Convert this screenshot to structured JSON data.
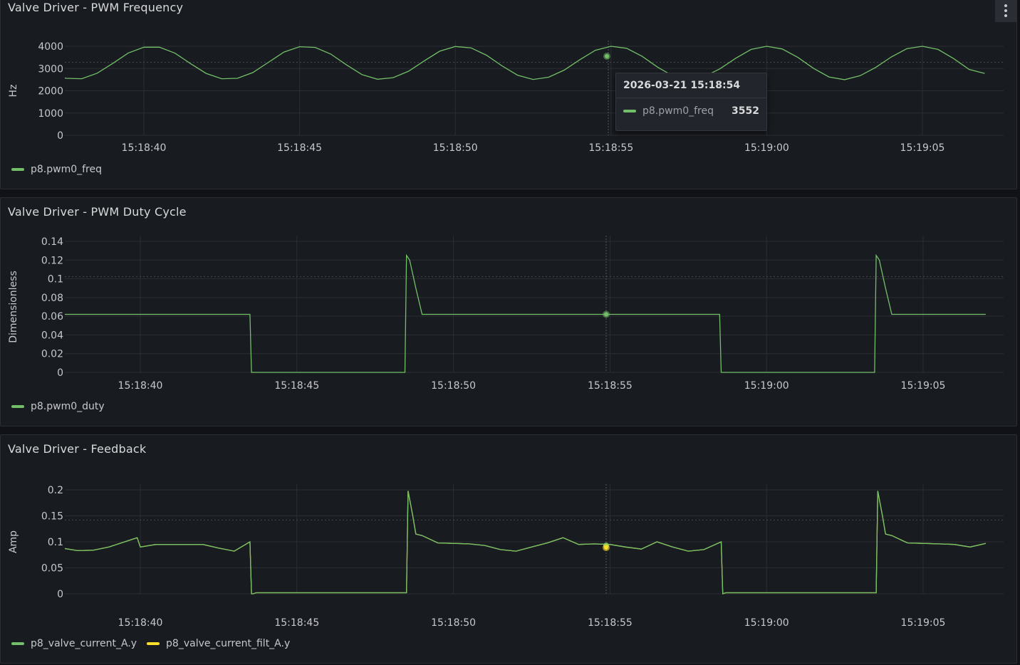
{
  "colors": {
    "green": "#73bf69",
    "yellow": "#fade2a",
    "grid": "#2b2e33",
    "text": "#c7c8cf"
  },
  "panels": [
    {
      "title": "Valve Driver - PWM Frequency",
      "menu_icon": "kebab-menu-icon",
      "legend": [
        {
          "name": "p8.pwm0_freq",
          "color": "#73bf69"
        }
      ],
      "tooltip": {
        "time": "2026-03-21 15:18:54",
        "series": "p8.pwm0_freq",
        "value": "3552"
      }
    },
    {
      "title": "Valve Driver - PWM Duty Cycle",
      "legend": [
        {
          "name": "p8.pwm0_duty",
          "color": "#73bf69"
        }
      ]
    },
    {
      "title": "Valve Driver - Feedback",
      "legend": [
        {
          "name": "p8_valve_current_A.y",
          "color": "#73bf69"
        },
        {
          "name": "p8_valve_current_filt_A.y",
          "color": "#fade2a"
        }
      ]
    }
  ],
  "chart_data": [
    {
      "type": "line",
      "title": "Valve Driver - PWM Frequency",
      "ylabel": "Hz",
      "x_ticks": [
        "15:18:40",
        "15:18:45",
        "15:18:50",
        "15:18:55",
        "15:19:00",
        "15:19:05"
      ],
      "x_range": [
        "15:18:37.6",
        "15:19:07.6"
      ],
      "y_ticks": [
        0,
        1000,
        2000,
        3000,
        4000
      ],
      "ylim": [
        0,
        4000
      ],
      "grid": true,
      "legend_placement": "bottom-left",
      "series": [
        {
          "name": "p8.pwm0_freq",
          "color": "#73bf69",
          "description": "sinusoid oscillating between ~2500 and ~4000 Hz, period ~5 s",
          "x_seconds_after_15_18_37": [
            0.0,
            0.5,
            1.0,
            1.5,
            2.0,
            2.5,
            3.0,
            3.5,
            4.0,
            4.5,
            5.0,
            5.5,
            6.0,
            6.5,
            7.0,
            7.5,
            8.0,
            8.5,
            9.0,
            9.5,
            10.0,
            10.5,
            11.0,
            11.5,
            12.0,
            12.5,
            13.0,
            13.5,
            14.0,
            14.5,
            15.0,
            15.5,
            16.0,
            16.5,
            17.0,
            17.5,
            18.0,
            18.5,
            19.0,
            19.5,
            20.0,
            20.5,
            21.0,
            21.5,
            22.0,
            22.5,
            23.0,
            23.5,
            24.0,
            24.5,
            25.0,
            25.5,
            26.0,
            26.5,
            27.0,
            27.5,
            28.0,
            28.5,
            29.0,
            29.5,
            30.0
          ],
          "values": [
            2780,
            2560,
            2540,
            2790,
            3230,
            3700,
            3960,
            3960,
            3690,
            3220,
            2780,
            2540,
            2560,
            2820,
            3280,
            3740,
            3980,
            3950,
            3650,
            3170,
            2730,
            2520,
            2590,
            2880,
            3340,
            3780,
            3990,
            3930,
            3600,
            3120,
            2700,
            2510,
            2610,
            2930,
            3400,
            3820,
            4000,
            3910,
            3550,
            3060,
            2660,
            2500,
            2640,
            2990,
            3460,
            3860,
            4000,
            3880,
            3500,
            3010,
            2620,
            2500,
            2680,
            3050,
            3520,
            3890,
            4000,
            3860,
            3450,
            2960,
            2780
          ]
        }
      ]
    },
    {
      "type": "line",
      "title": "Valve Driver - PWM Duty Cycle",
      "ylabel": "Dimensionless",
      "x_ticks": [
        "15:18:40",
        "15:18:45",
        "15:18:50",
        "15:18:55",
        "15:19:00",
        "15:19:05"
      ],
      "y_ticks": [
        0,
        0.02,
        0.04,
        0.06,
        0.08,
        0.1,
        0.12,
        0.14
      ],
      "ylim": [
        0,
        0.14
      ],
      "grid": true,
      "legend_placement": "bottom-left",
      "series": [
        {
          "name": "p8.pwm0_duty",
          "color": "#73bf69",
          "x_seconds_after_15_18_37": [
            0.0,
            6.5,
            6.55,
            11.45,
            11.5,
            11.6,
            11.8,
            12.0,
            21.5,
            21.55,
            26.45,
            26.5,
            26.6,
            26.8,
            27.0,
            30.0
          ],
          "values": [
            0.062,
            0.062,
            0.0,
            0.0,
            0.125,
            0.12,
            0.09,
            0.062,
            0.062,
            0.0,
            0.0,
            0.125,
            0.12,
            0.09,
            0.062,
            0.062
          ]
        }
      ]
    },
    {
      "type": "line",
      "title": "Valve Driver - Feedback",
      "ylabel": "Amp",
      "x_ticks": [
        "15:18:40",
        "15:18:45",
        "15:18:50",
        "15:18:55",
        "15:19:00",
        "15:19:05"
      ],
      "y_ticks": [
        0,
        0.05,
        0.1,
        0.15,
        0.2
      ],
      "ylim": [
        0,
        0.2
      ],
      "grid": true,
      "legend_placement": "bottom-left",
      "series": [
        {
          "name": "p8_valve_current_A.y",
          "color": "#73bf69",
          "x_seconds_after_15_18_37": [
            0.0,
            0.5,
            1.0,
            1.5,
            2.0,
            2.5,
            2.9,
            3.0,
            3.5,
            4.0,
            4.5,
            5.0,
            5.5,
            6.0,
            6.5,
            6.55,
            6.6,
            6.7,
            7.0,
            11.5,
            11.55,
            11.7,
            11.8,
            12.0,
            12.5,
            13.0,
            13.5,
            14.0,
            14.5,
            15.0,
            15.5,
            16.0,
            16.5,
            17.0,
            17.5,
            18.0,
            18.5,
            19.0,
            19.5,
            20.0,
            20.5,
            21.0,
            21.55,
            21.6,
            21.7,
            22.0,
            26.5,
            26.55,
            26.7,
            26.8,
            27.0,
            27.5,
            28.0,
            28.5,
            29.0,
            29.5,
            30.0
          ],
          "values": [
            0.098,
            0.088,
            0.083,
            0.084,
            0.09,
            0.1,
            0.108,
            0.09,
            0.095,
            0.095,
            0.095,
            0.095,
            0.088,
            0.082,
            0.1,
            0.0,
            0.0,
            0.002,
            0.002,
            0.002,
            0.198,
            0.15,
            0.115,
            0.112,
            0.098,
            0.097,
            0.096,
            0.093,
            0.085,
            0.082,
            0.09,
            0.098,
            0.108,
            0.095,
            0.096,
            0.095,
            0.09,
            0.086,
            0.1,
            0.09,
            0.082,
            0.085,
            0.1,
            0.0,
            0.002,
            0.002,
            0.002,
            0.198,
            0.15,
            0.115,
            0.112,
            0.098,
            0.097,
            0.096,
            0.095,
            0.09,
            0.097
          ]
        },
        {
          "name": "p8_valve_current_filt_A.y",
          "color": "#fade2a",
          "x_seconds_after_15_18_37": [
            0.0,
            0.5,
            1.0,
            1.5,
            2.0,
            2.5,
            2.9,
            3.0,
            3.5,
            4.0,
            4.5,
            5.0,
            5.5,
            6.0,
            6.5,
            6.55,
            6.6,
            6.7,
            7.0,
            11.5,
            11.55,
            11.7,
            11.8,
            12.0,
            12.5,
            13.0,
            13.5,
            14.0,
            14.5,
            15.0,
            15.5,
            16.0,
            16.5,
            17.0,
            17.5,
            18.0,
            18.5,
            19.0,
            19.5,
            20.0,
            20.5,
            21.0,
            21.55,
            21.6,
            21.7,
            22.0,
            26.5,
            26.55,
            26.7,
            26.8,
            27.0,
            27.5,
            28.0,
            28.5,
            29.0,
            29.5,
            30.0
          ],
          "values": [
            0.098,
            0.088,
            0.083,
            0.084,
            0.09,
            0.1,
            0.108,
            0.09,
            0.095,
            0.095,
            0.095,
            0.095,
            0.088,
            0.082,
            0.1,
            0.0,
            0.0,
            0.002,
            0.002,
            0.002,
            0.198,
            0.15,
            0.115,
            0.112,
            0.098,
            0.097,
            0.096,
            0.093,
            0.085,
            0.082,
            0.09,
            0.098,
            0.108,
            0.095,
            0.096,
            0.095,
            0.09,
            0.086,
            0.1,
            0.09,
            0.082,
            0.085,
            0.1,
            0.0,
            0.002,
            0.002,
            0.002,
            0.198,
            0.15,
            0.115,
            0.112,
            0.098,
            0.097,
            0.096,
            0.095,
            0.09,
            0.097
          ]
        }
      ],
      "hover_values": {
        "p8_valve_current_A.y": 0.093,
        "p8_valve_current_filt_A.y": 0.089
      }
    }
  ],
  "crosshair_time": "15:18:54.8"
}
